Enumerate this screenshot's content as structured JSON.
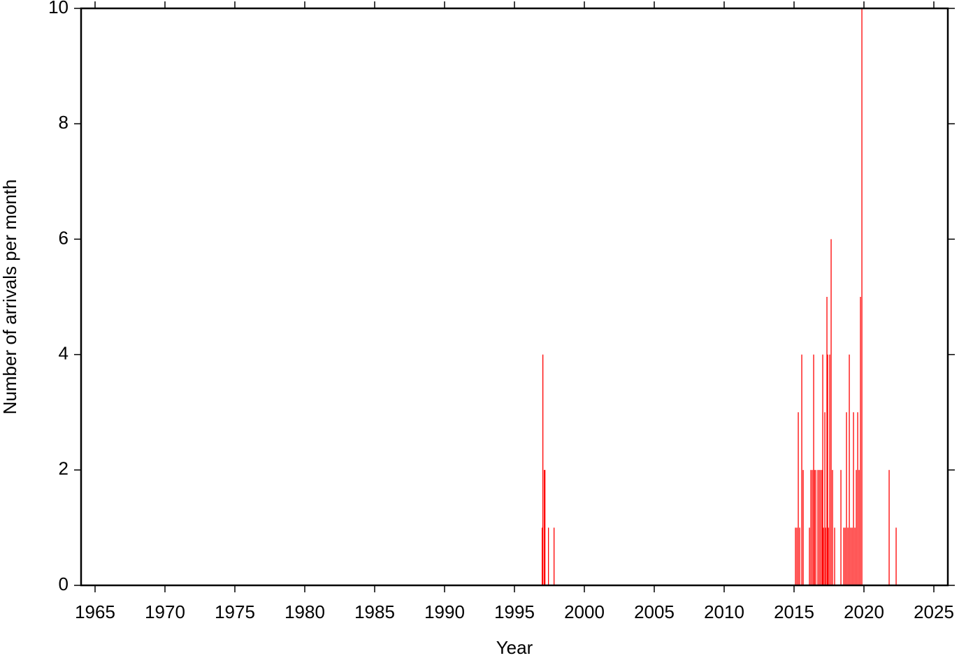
{
  "chart_data": {
    "type": "bar",
    "x_label": "Year",
    "y_label": "Number of arrivals per month",
    "color": "#ff0000",
    "xlim": [
      1964,
      2026
    ],
    "ylim": [
      0,
      10
    ],
    "xticks": [
      1965,
      1970,
      1975,
      1980,
      1985,
      1990,
      1995,
      2000,
      2005,
      2010,
      2015,
      2020,
      2025
    ],
    "yticks": [
      0,
      2,
      4,
      6,
      8,
      10
    ],
    "x": [
      1996.95,
      1997.0,
      1997.1,
      1997.15,
      1997.4,
      1997.8,
      2015.07,
      2015.17,
      2015.27,
      2015.37,
      2015.52,
      2015.62,
      2016.07,
      2016.17,
      2016.27,
      2016.37,
      2016.42,
      2016.52,
      2016.67,
      2016.77,
      2016.87,
      2016.97,
      2017.02,
      2017.07,
      2017.17,
      2017.22,
      2017.32,
      2017.37,
      2017.42,
      2017.52,
      2017.62,
      2017.72,
      2017.87,
      2018.32,
      2018.52,
      2018.62,
      2018.72,
      2018.82,
      2018.92,
      2019.02,
      2019.12,
      2019.22,
      2019.32,
      2019.42,
      2019.52,
      2019.62,
      2019.72,
      2019.82,
      2021.77,
      2022.27
    ],
    "values": [
      1,
      4,
      2,
      2,
      1,
      1,
      1,
      1,
      3,
      1,
      4,
      2,
      1,
      2,
      2,
      4,
      2,
      2,
      2,
      2,
      2,
      2,
      4,
      1,
      3,
      1,
      5,
      4,
      1,
      4,
      6,
      2,
      1,
      2,
      1,
      1,
      3,
      1,
      4,
      1,
      1,
      3,
      1,
      2,
      3,
      2,
      5,
      10,
      2,
      1
    ]
  }
}
